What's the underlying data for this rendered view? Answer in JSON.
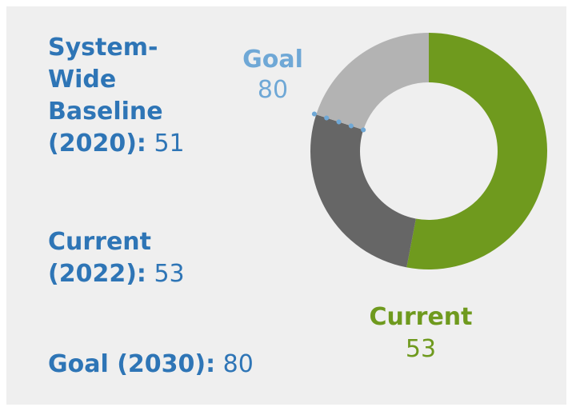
{
  "stats": {
    "baseline_label": "System-Wide Baseline (2020):",
    "baseline_value": "51",
    "current_label": "Current (2022):",
    "current_value": "53",
    "goal_label": "Goal (2030):",
    "goal_value": "80"
  },
  "chart_data": {
    "type": "pie",
    "style": "donut",
    "slices": [
      {
        "value": 53,
        "color": "#6f9a1e"
      },
      {
        "value": 27,
        "color": "#666666"
      },
      {
        "value": 20,
        "color": "#b3b3b3"
      }
    ],
    "total": 100,
    "annotations": [
      {
        "label": "Goal",
        "value": "80",
        "color": "#6fa8d6"
      },
      {
        "label": "Current",
        "value": "53",
        "color": "#6f9a1e"
      }
    ],
    "goal_marker": {
      "value": 80,
      "line_color": "#6fa8d6",
      "style": "dotted"
    }
  }
}
